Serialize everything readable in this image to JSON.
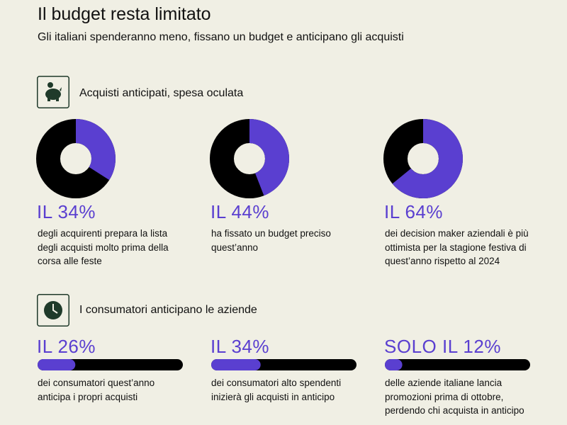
{
  "header": {
    "title": "Il budget resta limitato",
    "subtitle": "Gli italiani spenderanno meno, fissano un budget e anticipano gli acquisti"
  },
  "sections": [
    {
      "title": "Acquisti anticipati, spesa oculata",
      "kind": "donut",
      "items": [
        {
          "value": 34,
          "value_label": "IL 34%",
          "text": "degli acquirenti prepara la lista degli acquisti molto prima della corsa alle feste"
        },
        {
          "value": 44,
          "value_label": "IL 44%",
          "text": "ha fissato un budget preciso quest’anno"
        },
        {
          "value": 64,
          "value_label": "IL 64%",
          "text": "dei decision maker aziendali è più ottimista per la stagione festiva di quest’anno rispetto al 2024"
        }
      ]
    },
    {
      "title": "I consumatori anticipano le aziende",
      "kind": "bar",
      "items": [
        {
          "value": 26,
          "value_label": "IL 26%",
          "text": "dei consumatori quest’anno anticipa i propri acquisti"
        },
        {
          "value": 34,
          "value_label": "IL 34%",
          "text": "dei consumatori alto spendenti inizierà gli acquisti in anticipo"
        },
        {
          "value": 12,
          "value_label": "SOLO IL 12%",
          "text": "delle aziende italiane lancia promozioni prima di ottobre, perdendo chi acquista in anticipo"
        }
      ]
    }
  ],
  "accent_color": "#5a3fd0"
}
